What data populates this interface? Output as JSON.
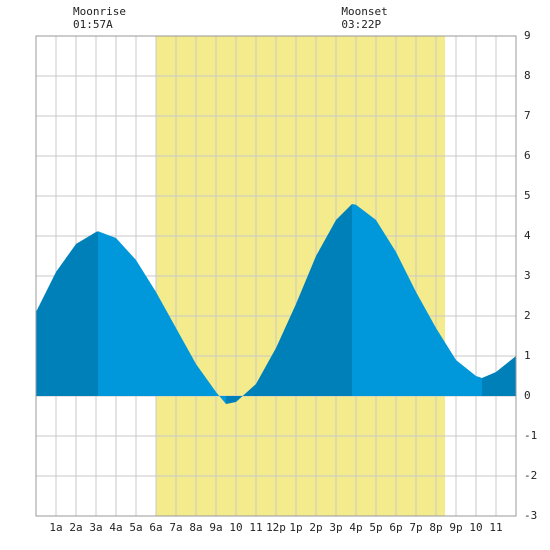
{
  "chart_data": {
    "type": "tide",
    "x": [
      0,
      1,
      2,
      3,
      3.1,
      4,
      5,
      6,
      7,
      8,
      9,
      9.5,
      10,
      11,
      12,
      13,
      14,
      15,
      15.8,
      16,
      17,
      18,
      19,
      20,
      21,
      22,
      22.3,
      23,
      24
    ],
    "values": [
      2.1,
      3.1,
      3.8,
      4.1,
      4.12,
      3.95,
      3.4,
      2.6,
      1.7,
      0.8,
      0.1,
      -0.2,
      -0.15,
      0.3,
      1.2,
      2.3,
      3.5,
      4.4,
      4.8,
      4.78,
      4.4,
      3.6,
      2.6,
      1.7,
      0.9,
      0.5,
      0.45,
      0.6,
      1.0
    ],
    "rising_color": "#0080b8",
    "falling_color": "#0098da",
    "daylight_color": "#f3eb8c",
    "daylight": [
      6.0,
      20.45
    ],
    "moon_events": [
      {
        "label": "Moonrise",
        "time": "01:57A",
        "hour": 1.95
      },
      {
        "label": "Moonset",
        "time": "03:22P",
        "hour": 15.37
      }
    ],
    "xlim": [
      0,
      24
    ],
    "ylim": [
      -3,
      9
    ],
    "xticks": [
      {
        "value": 1,
        "label": "1a"
      },
      {
        "value": 2,
        "label": "2a"
      },
      {
        "value": 3,
        "label": "3a"
      },
      {
        "value": 4,
        "label": "4a"
      },
      {
        "value": 5,
        "label": "5a"
      },
      {
        "value": 6,
        "label": "6a"
      },
      {
        "value": 7,
        "label": "7a"
      },
      {
        "value": 8,
        "label": "8a"
      },
      {
        "value": 9,
        "label": "9a"
      },
      10,
      11,
      {
        "value": 12,
        "label": "12p"
      },
      {
        "value": 13,
        "label": "1p"
      },
      {
        "value": 14,
        "label": "2p"
      },
      {
        "value": 15,
        "label": "3p"
      },
      {
        "value": 16,
        "label": "4p"
      },
      {
        "value": 17,
        "label": "5p"
      },
      {
        "value": 18,
        "label": "6p"
      },
      {
        "value": 19,
        "label": "7p"
      },
      {
        "value": 20,
        "label": "8p"
      },
      {
        "value": 21,
        "label": "9p"
      },
      {
        "value": 22,
        "label": "10"
      },
      {
        "value": 23,
        "label": "11"
      }
    ],
    "yticks": [
      -3,
      -2,
      -1,
      0,
      1,
      2,
      3,
      4,
      5,
      6,
      7,
      8,
      9
    ],
    "grid": true
  }
}
